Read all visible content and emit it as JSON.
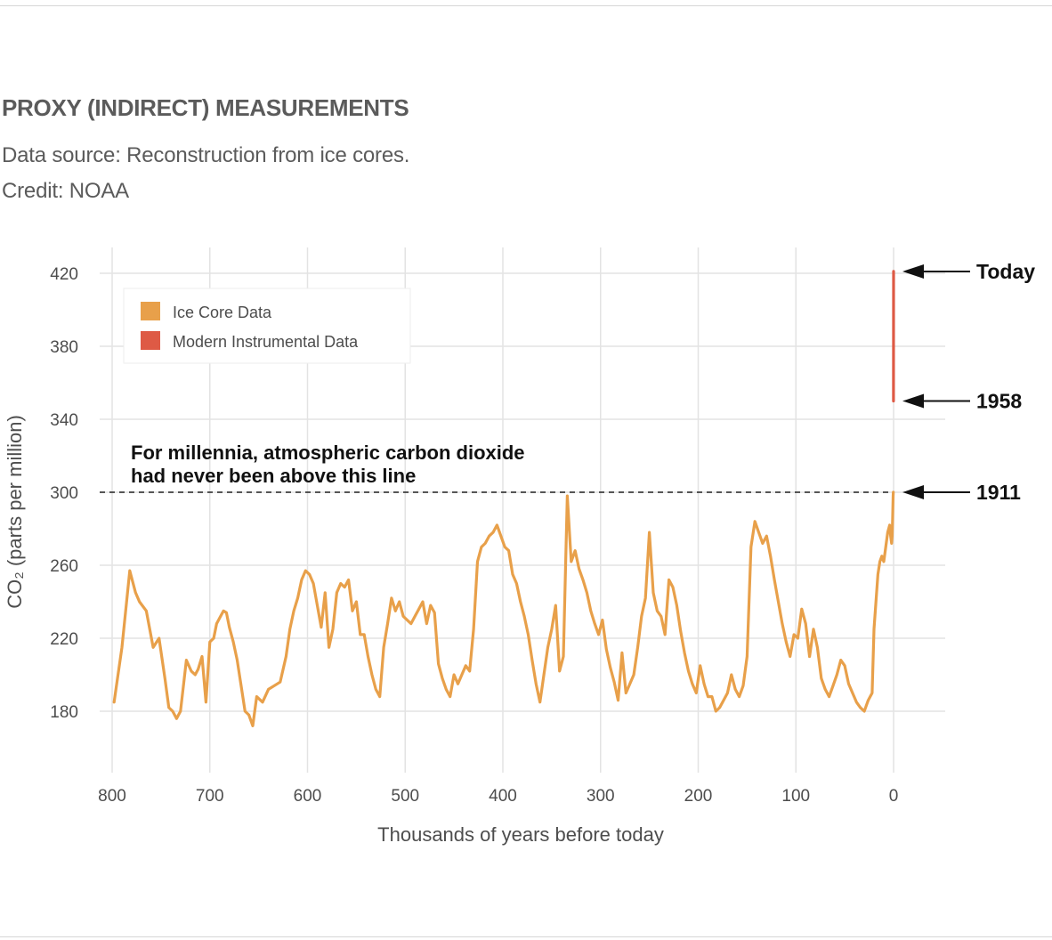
{
  "header": {
    "title": "PROXY (INDIRECT) MEASUREMENTS",
    "source": "Data source: Reconstruction from ice cores.",
    "credit": "Credit: NOAA"
  },
  "chart_data": {
    "type": "line",
    "title": "",
    "xlabel": "Thousands of years before today",
    "ylabel": "CO₂ (parts per million)",
    "xlim": [
      800,
      0
    ],
    "ylim": [
      150,
      430
    ],
    "x_ticks": [
      800,
      700,
      600,
      500,
      400,
      300,
      200,
      100,
      0
    ],
    "y_ticks": [
      180,
      220,
      260,
      300,
      340,
      380,
      420
    ],
    "grid": true,
    "legend_position": "top-left",
    "reference_line": {
      "y": 300,
      "label_line1": "For millennia, atmospheric carbon dioxide",
      "label_line2": "had never been above this line"
    },
    "markers": [
      {
        "label": "Today",
        "y": 421
      },
      {
        "label": "1958",
        "y": 350
      },
      {
        "label": "1911",
        "y": 300
      }
    ],
    "series": [
      {
        "name": "Ice Core Data",
        "color": "#e8a04a",
        "x": [
          798,
          790,
          782,
          776,
          772,
          765,
          758,
          752,
          746,
          742,
          738,
          734,
          730,
          724,
          719,
          715,
          712,
          708,
          704,
          700,
          696,
          693,
          689,
          686,
          683,
          680,
          676,
          672,
          668,
          664,
          660,
          656,
          652,
          646,
          640,
          634,
          628,
          622,
          618,
          614,
          610,
          606,
          602,
          598,
          594,
          590,
          586,
          582,
          578,
          574,
          570,
          566,
          562,
          558,
          554,
          550,
          546,
          542,
          538,
          534,
          530,
          526,
          522,
          518,
          514,
          510,
          506,
          502,
          498,
          494,
          490,
          486,
          482,
          478,
          474,
          470,
          466,
          462,
          458,
          454,
          450,
          446,
          442,
          438,
          434,
          430,
          426,
          422,
          418,
          414,
          410,
          406,
          402,
          398,
          394,
          390,
          386,
          382,
          378,
          374,
          370,
          366,
          362,
          358,
          354,
          350,
          346,
          342,
          338,
          334,
          330,
          326,
          322,
          318,
          314,
          310,
          306,
          302,
          298,
          294,
          290,
          286,
          282,
          278,
          274,
          270,
          266,
          262,
          258,
          254,
          250,
          246,
          242,
          238,
          234,
          230,
          226,
          222,
          218,
          214,
          210,
          206,
          202,
          198,
          194,
          190,
          186,
          182,
          178,
          174,
          170,
          166,
          162,
          158,
          154,
          150,
          146,
          142,
          138,
          134,
          130,
          126,
          122,
          118,
          114,
          110,
          106,
          102,
          98,
          94,
          90,
          86,
          82,
          78,
          74,
          70,
          66,
          62,
          58,
          54,
          50,
          46,
          42,
          38,
          34,
          30,
          26,
          22,
          20,
          18,
          16,
          14,
          12,
          10,
          8,
          6,
          4,
          3,
          2,
          1.5,
          1,
          0.5,
          0.3
        ],
        "values": [
          185,
          215,
          257,
          245,
          240,
          235,
          215,
          220,
          198,
          182,
          180,
          176,
          180,
          208,
          202,
          200,
          203,
          210,
          185,
          218,
          220,
          228,
          232,
          235,
          234,
          226,
          218,
          208,
          194,
          180,
          178,
          172,
          188,
          185,
          192,
          194,
          196,
          210,
          225,
          235,
          242,
          252,
          257,
          255,
          250,
          238,
          226,
          245,
          215,
          225,
          245,
          250,
          248,
          252,
          235,
          240,
          222,
          222,
          210,
          200,
          192,
          188,
          215,
          228,
          242,
          235,
          240,
          232,
          230,
          228,
          232,
          236,
          240,
          228,
          238,
          234,
          206,
          198,
          192,
          188,
          200,
          195,
          200,
          205,
          202,
          225,
          262,
          270,
          272,
          276,
          278,
          282,
          276,
          270,
          268,
          255,
          250,
          240,
          232,
          222,
          208,
          195,
          185,
          200,
          215,
          225,
          238,
          202,
          210,
          298,
          262,
          268,
          258,
          252,
          245,
          235,
          228,
          222,
          230,
          214,
          204,
          196,
          186,
          212,
          190,
          195,
          200,
          215,
          232,
          242,
          278,
          245,
          235,
          232,
          222,
          252,
          248,
          238,
          224,
          212,
          202,
          195,
          190,
          205,
          195,
          188,
          188,
          180,
          182,
          186,
          190,
          200,
          192,
          188,
          194,
          210,
          270,
          284,
          278,
          272,
          276,
          265,
          252,
          240,
          228,
          218,
          210,
          222,
          220,
          236,
          228,
          210,
          225,
          215,
          198,
          192,
          188,
          194,
          200,
          208,
          205,
          195,
          190,
          185,
          182,
          180,
          186,
          190,
          225,
          240,
          255,
          262,
          265,
          262,
          270,
          278,
          282,
          276,
          272,
          276,
          285,
          298,
          300
        ]
      },
      {
        "name": "Modern Instrumental Data",
        "color": "#de5a45",
        "x": [
          0.06,
          0.0
        ],
        "values": [
          350,
          421
        ]
      }
    ]
  }
}
